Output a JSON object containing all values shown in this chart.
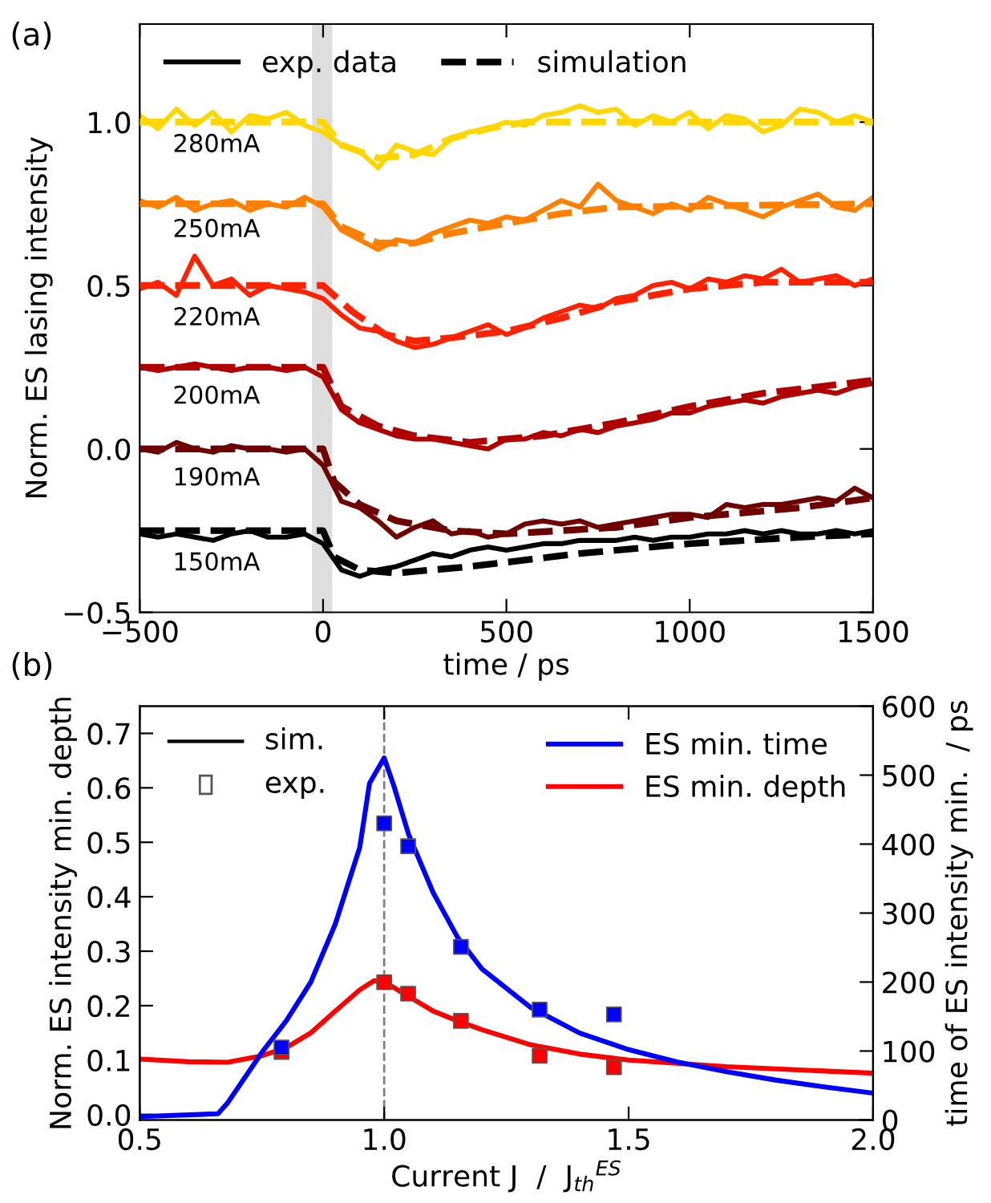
{
  "chart_data": [
    {
      "type": "line",
      "xlabel": "time / ps",
      "ylabel": "Norm. ES lasing intensity",
      "annotations": [
        "(a)",
        "280mA",
        "250mA",
        "220mA",
        "200mA",
        "190mA",
        "150mA"
      ],
      "x": [
        -500,
        -450,
        -400,
        -350,
        -300,
        -250,
        -200,
        -150,
        -100,
        -50,
        0,
        50,
        100,
        150,
        200,
        250,
        300,
        350,
        400,
        450,
        500,
        550,
        600,
        650,
        700,
        750,
        800,
        850,
        900,
        950,
        1000,
        1050,
        1100,
        1150,
        1200,
        1250,
        1300,
        1350,
        1400,
        1450,
        1500
      ],
      "series": [
        {
          "color": "#ffd700",
          "values": [
            1.02,
            0.98,
            1.04,
            0.99,
            1.03,
            0.97,
            1.02,
            1.01,
            1.03,
            0.99,
            0.97,
            0.93,
            0.91,
            0.86,
            0.93,
            0.91,
            0.9,
            0.95,
            0.97,
            0.98,
            1.0,
            0.99,
            1.02,
            1.03,
            1.05,
            1.03,
            1.04,
            0.99,
            1.02,
            1.0,
            1.03,
            0.98,
            1.02,
            1.01,
            0.97,
            0.99,
            1.04,
            1.03,
            1.0,
            1.02,
            1.0
          ]
        },
        {
          "color": "#ffd700",
          "line_style": "dashed",
          "x": [
            -500,
            0,
            50,
            150,
            250,
            350,
            450,
            550,
            1500
          ],
          "values": [
            1.0,
            1.0,
            0.93,
            0.89,
            0.9,
            0.95,
            0.98,
            1.0,
            1.0
          ]
        },
        {
          "color": "#ff8000",
          "values": [
            0.76,
            0.74,
            0.77,
            0.73,
            0.75,
            0.76,
            0.73,
            0.75,
            0.74,
            0.77,
            0.74,
            0.67,
            0.64,
            0.61,
            0.64,
            0.63,
            0.66,
            0.68,
            0.7,
            0.69,
            0.71,
            0.7,
            0.73,
            0.76,
            0.74,
            0.81,
            0.76,
            0.74,
            0.72,
            0.75,
            0.73,
            0.77,
            0.75,
            0.73,
            0.71,
            0.74,
            0.76,
            0.78,
            0.74,
            0.73,
            0.77
          ]
        },
        {
          "color": "#ff8000",
          "line_style": "dashed",
          "x": [
            -500,
            0,
            50,
            150,
            250,
            350,
            500,
            650,
            800,
            1500
          ],
          "values": [
            0.75,
            0.75,
            0.68,
            0.63,
            0.63,
            0.66,
            0.69,
            0.72,
            0.74,
            0.75
          ]
        },
        {
          "color": "#ff2200",
          "values": [
            0.49,
            0.51,
            0.47,
            0.59,
            0.5,
            0.52,
            0.47,
            0.5,
            0.49,
            0.48,
            0.46,
            0.41,
            0.37,
            0.36,
            0.33,
            0.31,
            0.32,
            0.34,
            0.36,
            0.38,
            0.35,
            0.37,
            0.4,
            0.42,
            0.44,
            0.43,
            0.46,
            0.47,
            0.5,
            0.51,
            0.49,
            0.52,
            0.51,
            0.53,
            0.52,
            0.55,
            0.51,
            0.52,
            0.53,
            0.5,
            0.52
          ]
        },
        {
          "color": "#ff2200",
          "line_style": "dashed",
          "x": [
            -500,
            0,
            80,
            170,
            250,
            350,
            500,
            650,
            800,
            1000,
            1200,
            1500
          ],
          "values": [
            0.5,
            0.5,
            0.42,
            0.35,
            0.33,
            0.34,
            0.36,
            0.4,
            0.45,
            0.49,
            0.51,
            0.51
          ]
        },
        {
          "color": "#b00000",
          "values": [
            0.25,
            0.24,
            0.25,
            0.26,
            0.25,
            0.24,
            0.25,
            0.25,
            0.24,
            0.25,
            0.22,
            0.12,
            0.08,
            0.06,
            0.04,
            0.03,
            0.03,
            0.02,
            0.01,
            0.0,
            0.03,
            0.03,
            0.05,
            0.04,
            0.06,
            0.05,
            0.07,
            0.08,
            0.09,
            0.11,
            0.11,
            0.13,
            0.14,
            0.15,
            0.14,
            0.16,
            0.17,
            0.18,
            0.17,
            0.19,
            0.2
          ]
        },
        {
          "color": "#b00000",
          "line_style": "dashed",
          "x": [
            -500,
            0,
            50,
            150,
            250,
            400,
            600,
            800,
            1000,
            1200,
            1500
          ],
          "values": [
            0.25,
            0.25,
            0.13,
            0.07,
            0.04,
            0.02,
            0.04,
            0.08,
            0.13,
            0.17,
            0.21
          ]
        },
        {
          "color": "#6e0000",
          "values": [
            0.0,
            -0.01,
            0.02,
            0.0,
            -0.01,
            0.01,
            0.0,
            0.0,
            -0.01,
            0.0,
            -0.05,
            -0.16,
            -0.18,
            -0.22,
            -0.27,
            -0.24,
            -0.22,
            -0.26,
            -0.25,
            -0.27,
            -0.26,
            -0.23,
            -0.22,
            -0.23,
            -0.22,
            -0.24,
            -0.23,
            -0.22,
            -0.21,
            -0.2,
            -0.2,
            -0.21,
            -0.17,
            -0.18,
            -0.17,
            -0.17,
            -0.16,
            -0.15,
            -0.16,
            -0.12,
            -0.15
          ]
        },
        {
          "color": "#6e0000",
          "line_style": "dashed",
          "x": [
            -500,
            0,
            30,
            100,
            200,
            350,
            500,
            800,
            1000,
            1300,
            1500
          ],
          "values": [
            0.0,
            0.0,
            -0.1,
            -0.17,
            -0.22,
            -0.25,
            -0.26,
            -0.24,
            -0.21,
            -0.18,
            -0.15
          ]
        },
        {
          "name": "exp. data",
          "color": "#000000",
          "values": [
            -0.26,
            -0.27,
            -0.26,
            -0.27,
            -0.28,
            -0.26,
            -0.25,
            -0.27,
            -0.27,
            -0.26,
            -0.29,
            -0.37,
            -0.39,
            -0.37,
            -0.36,
            -0.34,
            -0.32,
            -0.33,
            -0.31,
            -0.3,
            -0.31,
            -0.3,
            -0.29,
            -0.29,
            -0.28,
            -0.28,
            -0.28,
            -0.27,
            -0.28,
            -0.27,
            -0.27,
            -0.26,
            -0.26,
            -0.25,
            -0.26,
            -0.25,
            -0.26,
            -0.26,
            -0.25,
            -0.26,
            -0.25
          ]
        },
        {
          "name": "simulation",
          "color": "#000000",
          "line_style": "dashed",
          "x": [
            -500,
            0,
            30,
            100,
            200,
            400,
            700,
            1000,
            1300,
            1500
          ],
          "values": [
            -0.25,
            -0.25,
            -0.33,
            -0.37,
            -0.38,
            -0.36,
            -0.32,
            -0.29,
            -0.27,
            -0.26
          ]
        }
      ],
      "xlim": [
        -500,
        1500
      ],
      "xticks": [
        {
          "value": -500,
          "label": "−500"
        },
        0,
        500,
        1000,
        1500
      ],
      "ylim": [
        -0.5,
        1.3
      ],
      "yticks": [
        {
          "value": -0.5,
          "label": "−0.5"
        },
        {
          "value": 0,
          "label": "0.0"
        },
        0.5,
        {
          "value": 1,
          "label": "1.0"
        }
      ],
      "bands": [
        {
          "axis": "x",
          "from": -30,
          "to": 25,
          "color": "#dddddd"
        }
      ],
      "legend": "top left"
    },
    {
      "type": "line",
      "xlabel": "Current J  /  J$_{th}$$^{ES}$",
      "ylabel": "Norm. ES intensity min. depth",
      "y2label": "time of ES intensity min.  / ps",
      "annotations": [
        "(b)",
        "sim.",
        "exp."
      ],
      "series": [
        {
          "name": "ES min. time",
          "color": "#0000ff",
          "axis": "y2",
          "x": [
            0.5,
            0.66,
            0.68,
            0.75,
            0.8,
            0.85,
            0.9,
            0.95,
            0.97,
            1.0,
            1.02,
            1.05,
            1.1,
            1.15,
            1.2,
            1.3,
            1.4,
            1.5,
            1.6,
            1.7,
            1.8,
            1.9,
            2.0
          ],
          "values": [
            5,
            9,
            25,
            98,
            144,
            200,
            284,
            395,
            488,
            525,
            484,
            414,
            330,
            265,
            219,
            163,
            126,
            102,
            84,
            70,
            58,
            48,
            39
          ]
        },
        {
          "name": "ES min. depth",
          "color": "#ff0000",
          "x": [
            0.5,
            0.6,
            0.68,
            0.75,
            0.8,
            0.85,
            0.9,
            0.95,
            0.98,
            1.0,
            1.05,
            1.1,
            1.15,
            1.2,
            1.3,
            1.4,
            1.5,
            1.7,
            2.0
          ],
          "values": [
            0.102,
            0.097,
            0.096,
            0.108,
            0.123,
            0.15,
            0.19,
            0.229,
            0.246,
            0.244,
            0.217,
            0.19,
            0.172,
            0.156,
            0.128,
            0.111,
            0.1,
            0.088,
            0.076
          ]
        },
        {
          "type": "scatter",
          "marker": "square",
          "color": "#0000ff",
          "axis": "y2",
          "x": [
            0.79,
            1.0,
            1.049,
            1.157,
            1.318,
            1.47
          ],
          "values": [
            105,
            430,
            397,
            251,
            160,
            153
          ]
        },
        {
          "type": "scatter",
          "marker": "square",
          "color": "#ff0000",
          "x": [
            0.79,
            1.0,
            1.049,
            1.157,
            1.318,
            1.47
          ],
          "values": [
            0.115,
            0.243,
            0.222,
            0.172,
            0.108,
            0.087
          ]
        }
      ],
      "xlim": [
        0.5,
        2.0
      ],
      "xticks": [
        0.5,
        {
          "value": 1.0,
          "label": "1.0"
        },
        1.5,
        {
          "value": 2.0,
          "label": "2.0"
        }
      ],
      "ylim": [
        -0.01,
        0.75
      ],
      "yticks": [
        {
          "value": 0,
          "label": "0.0"
        },
        0.1,
        0.2,
        0.3,
        0.4,
        0.5,
        0.6,
        0.7
      ],
      "y2lim": [
        0,
        600
      ],
      "y2ticks": [
        0,
        100,
        200,
        300,
        400,
        500,
        600
      ],
      "ref_lines": [
        {
          "axis": "x",
          "value": 1.0,
          "color": "#808080",
          "line_style": "dashed"
        }
      ],
      "legend": "top right"
    }
  ]
}
